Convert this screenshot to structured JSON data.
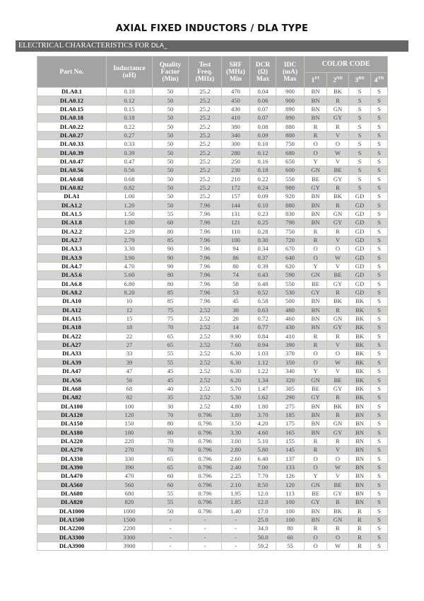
{
  "title": "AXIAL FIXED INDUCTORS / DLA TYPE",
  "section": {
    "label": "ELECTRICAL CHARACTERISTICS FOR",
    "suffix": "DLA_"
  },
  "headers": {
    "part": "Part No.",
    "inductance": [
      "Inductance",
      "(uH)"
    ],
    "quality": [
      "Quality",
      "Factor",
      "(Min)"
    ],
    "test": [
      "Test",
      "Freq.",
      "(MHz)"
    ],
    "srf": [
      "SRF",
      "(MHz)",
      "Min"
    ],
    "dcr": [
      "DCR",
      "(Ω)",
      "Max"
    ],
    "idc": [
      "IDC",
      "(mA)",
      "Max"
    ],
    "color_code": "COLOR CODE",
    "bands": [
      [
        "1",
        "ST"
      ],
      [
        "2",
        "ND"
      ],
      [
        "3",
        "RD"
      ],
      [
        "4",
        "TH"
      ]
    ]
  },
  "rows": [
    [
      "DLA0.1",
      "0.10",
      "50",
      "25.2",
      "470",
      "0.04",
      "900",
      "BN",
      "BK",
      "S",
      "S"
    ],
    [
      "DLA0.12",
      "0.12",
      "50",
      "25.2",
      "450",
      "0.06",
      "900",
      "BN",
      "R",
      "S",
      "S"
    ],
    [
      "DLA0.15",
      "0.15",
      "50",
      "25.2",
      "430",
      "0.07",
      "890",
      "BN",
      "GN",
      "S",
      "S"
    ],
    [
      "DLA0.18",
      "0.18",
      "50",
      "25.2",
      "410",
      "0.07",
      "890",
      "BN",
      "GY",
      "S",
      "S"
    ],
    [
      "DLA0.22",
      "0.22",
      "50",
      "25.2",
      "380",
      "0.08",
      "880",
      "R",
      "R",
      "S",
      "S"
    ],
    [
      "DLA0.27",
      "0.27",
      "50",
      "25.2",
      "340",
      "0.09",
      "800",
      "R",
      "V",
      "S",
      "S"
    ],
    [
      "DLA0.33",
      "0.33",
      "50",
      "25.2",
      "300",
      "0.10",
      "750",
      "O",
      "O",
      "S",
      "S"
    ],
    [
      "DLA0.39",
      "0.39",
      "50",
      "25.2",
      "280",
      "0.12",
      "680",
      "O",
      "W",
      "S",
      "S"
    ],
    [
      "DLA0.47",
      "0.47",
      "50",
      "25.2",
      "250",
      "0.16",
      "650",
      "Y",
      "V",
      "S",
      "S"
    ],
    [
      "DLA0.56",
      "0.56",
      "50",
      "25.2",
      "230",
      "0.18",
      "600",
      "GN",
      "BE",
      "S",
      "S"
    ],
    [
      "DLA0.68",
      "0.68",
      "50",
      "25.2",
      "210",
      "0.22",
      "550",
      "BE",
      "GY",
      "S",
      "S"
    ],
    [
      "DLA0.82",
      "0.82",
      "50",
      "25.2",
      "172",
      "0.24",
      "980",
      "GY",
      "R",
      "S",
      "S"
    ],
    [
      "DLA1",
      "1.00",
      "50",
      "25.2",
      "157",
      "0.09",
      "920",
      "BN",
      "BK",
      "GD",
      "S"
    ],
    [
      "DLA1.2",
      "1.20",
      "50",
      "7.96",
      "144",
      "0.10",
      "880",
      "BN",
      "R",
      "GD",
      "S"
    ],
    [
      "DLA1.5",
      "1.50",
      "55",
      "7.96",
      "131",
      "0.23",
      "830",
      "BN",
      "GN",
      "GD",
      "S"
    ],
    [
      "DLA1.8",
      "1.80",
      "60",
      "7.96",
      "121",
      "0.25",
      "790",
      "BN",
      "GY",
      "GD",
      "S"
    ],
    [
      "DLA2.2",
      "2.20",
      "80",
      "7.96",
      "110",
      "0.28",
      "750",
      "R",
      "R",
      "GD",
      "S"
    ],
    [
      "DLA2.7",
      "2.70",
      "85",
      "7.96",
      "100",
      "0.30",
      "720",
      "R",
      "V",
      "GD",
      "S"
    ],
    [
      "DLA3.3",
      "3.30",
      "90",
      "7.96",
      "94",
      "0.34",
      "670",
      "O",
      "O",
      "GD",
      "S"
    ],
    [
      "DLA3.9",
      "3.90",
      "90",
      "7.96",
      "86",
      "0.37",
      "640",
      "O",
      "W",
      "GD",
      "S"
    ],
    [
      "DLA4.7",
      "4.70",
      "90",
      "7.96",
      "80",
      "0.39",
      "620",
      "Y",
      "V",
      "GD",
      "S"
    ],
    [
      "DLA5.6",
      "5.60",
      "80",
      "7.96",
      "74",
      "0.43",
      "590",
      "GN",
      "BE",
      "GD",
      "S"
    ],
    [
      "DLA6.8",
      "6.80",
      "80",
      "7.96",
      "58",
      "0.48",
      "550",
      "BE",
      "GY",
      "GD",
      "S"
    ],
    [
      "DLA8.2",
      "8.20",
      "85",
      "7.96",
      "53",
      "0.52",
      "530",
      "GY",
      "R",
      "GD",
      "S"
    ],
    [
      "DLA10",
      "10",
      "85",
      "7.96",
      "45",
      "0.58",
      "500",
      "BN",
      "BK",
      "BK",
      "S"
    ],
    [
      "DLA12",
      "12",
      "75",
      "2.52",
      "30",
      "0.63",
      "480",
      "BN",
      "R",
      "BK",
      "S"
    ],
    [
      "DLA15",
      "15",
      "75",
      "2.52",
      "20",
      "0.72",
      "460",
      "BN",
      "GN",
      "BK",
      "S"
    ],
    [
      "DLA18",
      "18",
      "70",
      "2.52",
      "14",
      "0.77",
      "430",
      "BN",
      "GY",
      "BK",
      "S"
    ],
    [
      "DLA22",
      "22",
      "65",
      "2.52",
      "9.90",
      "0.84",
      "410",
      "R",
      "R",
      "BK",
      "S"
    ],
    [
      "DLA27",
      "27",
      "65",
      "2.52",
      "7.60",
      "0.94",
      "390",
      "R",
      "V",
      "BK",
      "S"
    ],
    [
      "DLA33",
      "33",
      "55",
      "2.52",
      "6.30",
      "1.03",
      "370",
      "O",
      "O",
      "BK",
      "S"
    ],
    [
      "DLA39",
      "39",
      "55",
      "2.52",
      "6.30",
      "1.12",
      "350",
      "O",
      "W",
      "BK",
      "S"
    ],
    [
      "DLA47",
      "47",
      "45",
      "2.52",
      "6.30",
      "1.22",
      "340",
      "Y",
      "V",
      "BK",
      "S"
    ],
    [
      "DLA56",
      "56",
      "45",
      "2.52",
      "6.20",
      "1.34",
      "320",
      "GN",
      "BE",
      "BK",
      "S"
    ],
    [
      "DLA68",
      "68",
      "40",
      "2.52",
      "5.70",
      "1.47",
      "305",
      "BE",
      "GY",
      "BK",
      "S"
    ],
    [
      "DLA82",
      "82",
      "35",
      "2.52",
      "5.30",
      "1.62",
      "290",
      "GY",
      "R",
      "BK",
      "S"
    ],
    [
      "DLA100",
      "100",
      "30",
      "2.52",
      "4.80",
      "1.80",
      "275",
      "BN",
      "BK",
      "BN",
      "S"
    ],
    [
      "DLA120",
      "120",
      "70",
      "0.796",
      "3.80",
      "3.70",
      "185",
      "BN",
      "R",
      "BN",
      "S"
    ],
    [
      "DLA150",
      "150",
      "80",
      "0.796",
      "3.50",
      "4.20",
      "175",
      "BN",
      "GN",
      "BN",
      "S"
    ],
    [
      "DLA180",
      "180",
      "80",
      "0.796",
      "3.30",
      "4.60",
      "165",
      "BN",
      "GY",
      "BN",
      "S"
    ],
    [
      "DLA220",
      "220",
      "70",
      "0.796",
      "3.00",
      "5.10",
      "155",
      "R",
      "R",
      "BN",
      "S"
    ],
    [
      "DLA270",
      "270",
      "70",
      "0.796",
      "2.80",
      "5.80",
      "145",
      "R",
      "V",
      "BN",
      "S"
    ],
    [
      "DLA330",
      "330",
      "65",
      "0.796",
      "2.60",
      "6.40",
      "137",
      "O",
      "O",
      "BN",
      "S"
    ],
    [
      "DLA390",
      "390",
      "65",
      "0.796",
      "2.40",
      "7.00",
      "133",
      "O",
      "W",
      "BN",
      "S"
    ],
    [
      "DLA470",
      "470",
      "60",
      "0.796",
      "2.25",
      "7.70",
      "126",
      "Y",
      "V",
      "BN",
      "S"
    ],
    [
      "DLA560",
      "560",
      "60",
      "0.796",
      "2.10",
      "8.50",
      "120",
      "GN",
      "BE",
      "BN",
      "S"
    ],
    [
      "DLA680",
      "680",
      "55",
      "0.796",
      "1.95",
      "12.0",
      "113",
      "BE",
      "GY",
      "BN",
      "S"
    ],
    [
      "DLA820",
      "820",
      "55",
      "0.796",
      "1.85",
      "12.0",
      "100",
      "GY",
      "R",
      "BN",
      "S"
    ],
    [
      "DLA1000",
      "1000",
      "50",
      "0.796",
      "1.40",
      "17.0",
      "100",
      "BN",
      "BK",
      "R",
      "S"
    ],
    [
      "DLA1500",
      "1500",
      "-",
      "-",
      "-",
      "25.0",
      "100",
      "BN",
      "GN",
      "R",
      "S"
    ],
    [
      "DLA2200",
      "2200",
      "-",
      "-",
      "-",
      "34.0",
      "80",
      "R",
      "R",
      "R",
      "S"
    ],
    [
      "DLA3300",
      "3300",
      "-",
      "-",
      "-",
      "50.0",
      "60",
      "O",
      "O",
      "R",
      "S"
    ],
    [
      "DLA3900",
      "3900",
      "-",
      "-",
      "-",
      "59.2",
      "55",
      "O",
      "W",
      "R",
      "S"
    ]
  ]
}
